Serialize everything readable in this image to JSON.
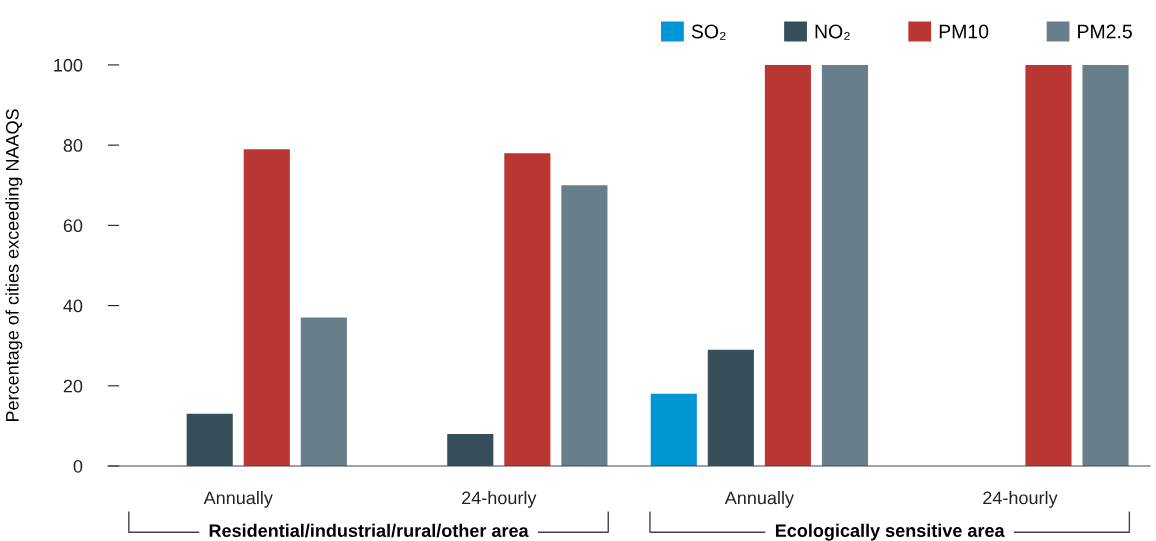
{
  "chart_data": {
    "type": "bar",
    "ylabel": "Percentage of cities exceeding NAAQS",
    "categories": [
      "Annually",
      "24-hourly",
      "Annually",
      "24-hourly"
    ],
    "series": [
      {
        "name": "SO₂",
        "color": "#0096d6",
        "values": [
          null,
          null,
          18,
          null
        ]
      },
      {
        "name": "NO₂",
        "color": "#374f5b",
        "values": [
          13,
          8,
          29,
          null
        ]
      },
      {
        "name": "PM10",
        "color": "#b93632",
        "values": [
          79,
          78,
          100,
          100
        ]
      },
      {
        "name": "PM2.5",
        "color": "#697e8b",
        "values": [
          37,
          70,
          100,
          100
        ]
      }
    ],
    "ylim": [
      0,
      100
    ],
    "yticks": [
      0,
      20,
      40,
      60,
      80,
      100
    ],
    "grid": false,
    "legend": "top right",
    "annotations": [
      "Residential/industrial/rural/other area",
      "Ecologically sensitive area"
    ]
  }
}
